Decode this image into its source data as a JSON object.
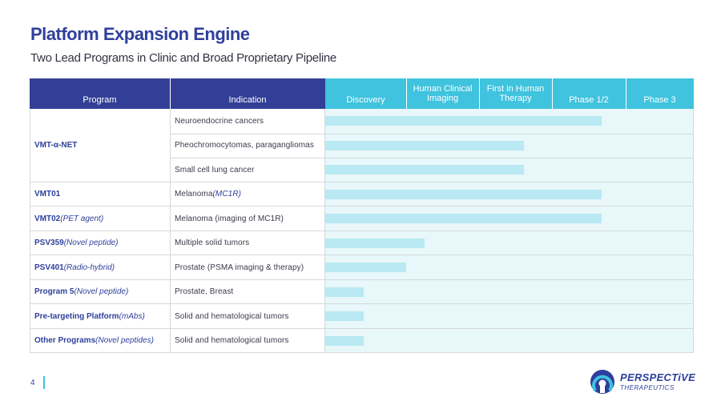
{
  "slide": {
    "title": "Platform Expansion Engine",
    "subtitle": "Two Lead Programs in Clinic and Broad Proprietary Pipeline",
    "page_number": "4"
  },
  "brand": {
    "name": "PERSPECTiVE",
    "sub": "THERAPEUTICS",
    "primary_color": "#2e3f9c",
    "accent_color": "#3fc3de",
    "bar_color": "#b9e9f2",
    "bar_area_color": "#e8f7fa"
  },
  "table": {
    "columns": {
      "program": "Program",
      "indication": "Indication",
      "stages": [
        "Discovery",
        "Human Clinical Imaging",
        "First in Human Therapy",
        "Phase 1/2",
        "Phase 3"
      ]
    },
    "groups": [
      {
        "program": "VMT-α-NET",
        "program_note": "",
        "rows": [
          {
            "indication": "Neuroendocrine cancers",
            "indication_note": "",
            "progress": 0.75
          },
          {
            "indication": "Pheochromocytomas,  paragangliomas",
            "indication_note": "",
            "progress": 0.54
          },
          {
            "indication": "Small cell lung cancer",
            "indication_note": "",
            "progress": 0.54
          }
        ]
      },
      {
        "program": "VMT01",
        "program_note": "",
        "rows": [
          {
            "indication": "Melanoma ",
            "indication_note": "(MC1R)",
            "progress": 0.75
          }
        ]
      },
      {
        "program": "VMT02",
        "program_note": "(PET agent)",
        "rows": [
          {
            "indication": "Melanoma  (imaging of MC1R)",
            "indication_note": "",
            "progress": 0.75
          }
        ]
      },
      {
        "program": "PSV359",
        "program_note": "(Novel peptide)",
        "rows": [
          {
            "indication": "Multiple solid tumors",
            "indication_note": "",
            "progress": 0.27
          }
        ]
      },
      {
        "program": "PSV401",
        "program_note": "(Radio-hybrid)",
        "rows": [
          {
            "indication": "Prostate (PSMA imaging & therapy)",
            "indication_note": "",
            "progress": 0.22
          }
        ]
      },
      {
        "program": "Program 5",
        "program_note": "(Novel peptide)",
        "rows": [
          {
            "indication": "Prostate,  Breast",
            "indication_note": "",
            "progress": 0.105
          }
        ]
      },
      {
        "program": "Pre-targeting Platform",
        "program_note": "(mAbs)",
        "rows": [
          {
            "indication": "Solid and hematological tumors",
            "indication_note": "",
            "progress": 0.105
          }
        ]
      },
      {
        "program": "Other Programs",
        "program_note": "(Novel peptides)",
        "rows": [
          {
            "indication": "Solid and hematological tumors",
            "indication_note": "",
            "progress": 0.105
          }
        ]
      }
    ]
  }
}
